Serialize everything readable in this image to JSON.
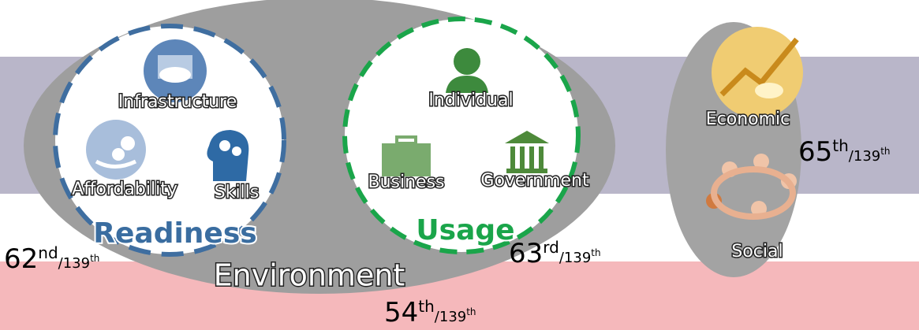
{
  "readiness": {
    "title": "Readiness",
    "items": [
      "Infrastructure",
      "Affordability",
      "Skills"
    ],
    "rank": {
      "position": "62",
      "position_suffix": "nd",
      "total": "/139",
      "total_suffix": "th"
    }
  },
  "usage": {
    "title": "Usage",
    "items": [
      "Individual",
      "Business",
      "Government"
    ],
    "rank": {
      "position": "63",
      "position_suffix": "rd",
      "total": "/139",
      "total_suffix": "th"
    }
  },
  "environment": {
    "title": "Environment",
    "rank": {
      "position": "54",
      "position_suffix": "th",
      "total": "/139",
      "total_suffix": "th"
    }
  },
  "impact": {
    "items": [
      "Economic",
      "Social"
    ],
    "rank": {
      "position": "65",
      "position_suffix": "th",
      "total": "/139",
      "total_suffix": "th"
    }
  }
}
